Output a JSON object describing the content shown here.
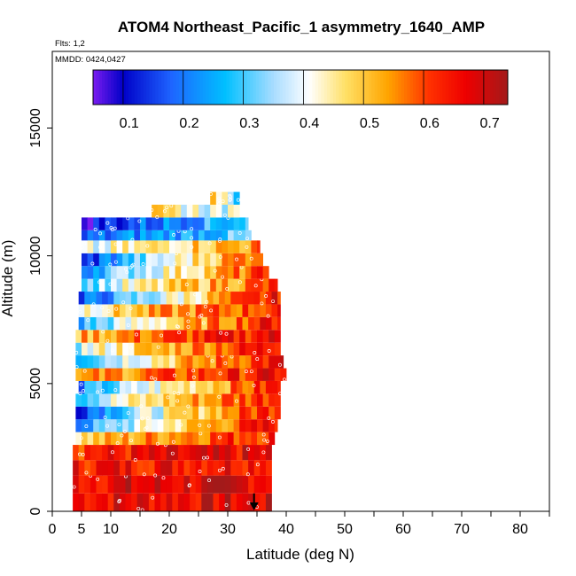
{
  "chart_data": {
    "type": "heatmap",
    "title": "ATOM4 Northeast_Pacific_1 asymmetry_1640_AMP",
    "flights_label": "Flts: 1,2",
    "dates_label": "MMDD: 0424,0427",
    "xlabel": "Latitude (deg N)",
    "ylabel": "Altitude (m)",
    "xlim": [
      0,
      85
    ],
    "ylim": [
      0,
      18000
    ],
    "x_ticks": [
      0,
      5,
      10,
      20,
      30,
      40,
      50,
      60,
      70,
      80
    ],
    "x_minor_ticks": [
      15,
      25,
      35,
      45,
      55,
      65,
      75,
      85
    ],
    "y_ticks": [
      0,
      5000,
      10000,
      15000
    ],
    "colorbar": {
      "min": 0.04,
      "max": 0.73,
      "ticks": [
        0.1,
        0.2,
        0.3,
        0.4,
        0.5,
        0.6,
        0.7
      ],
      "stops": [
        {
          "v": 0.04,
          "c": "#7a1cf0"
        },
        {
          "v": 0.09,
          "c": "#0000c8"
        },
        {
          "v": 0.17,
          "c": "#1e64ff"
        },
        {
          "v": 0.26,
          "c": "#00c0ff"
        },
        {
          "v": 0.34,
          "c": "#a8dcff"
        },
        {
          "v": 0.4,
          "c": "#ffffff"
        },
        {
          "v": 0.46,
          "c": "#ffe066"
        },
        {
          "v": 0.53,
          "c": "#ffa500"
        },
        {
          "v": 0.6,
          "c": "#ff3000"
        },
        {
          "v": 0.66,
          "c": "#ee0000"
        },
        {
          "v": 0.73,
          "c": "#a31a1a"
        }
      ]
    },
    "rows": [
      {
        "alt_min": 0,
        "alt_max": 700,
        "lat_min": 3.5,
        "lat_max": 37.5,
        "v0": 0.66,
        "v1": 0.67
      },
      {
        "alt_min": 700,
        "alt_max": 1400,
        "lat_min": 3.5,
        "lat_max": 37.5,
        "v0": 0.66,
        "v1": 0.68
      },
      {
        "alt_min": 1400,
        "alt_max": 2000,
        "lat_min": 3.5,
        "lat_max": 37.5,
        "v0": 0.64,
        "v1": 0.66
      },
      {
        "alt_min": 2000,
        "alt_max": 2600,
        "lat_min": 3.5,
        "lat_max": 37.5,
        "v0": 0.62,
        "v1": 0.66
      },
      {
        "alt_min": 2600,
        "alt_max": 3100,
        "lat_min": 4,
        "lat_max": 38,
        "v0": 0.46,
        "v1": 0.64
      },
      {
        "alt_min": 3100,
        "alt_max": 3600,
        "lat_min": 4,
        "lat_max": 38.5,
        "v0": 0.2,
        "v1": 0.66
      },
      {
        "alt_min": 3600,
        "alt_max": 4100,
        "lat_min": 4,
        "lat_max": 39,
        "v0": 0.15,
        "v1": 0.66
      },
      {
        "alt_min": 4100,
        "alt_max": 4600,
        "lat_min": 4,
        "lat_max": 39,
        "v0": 0.3,
        "v1": 0.65
      },
      {
        "alt_min": 4600,
        "alt_max": 5100,
        "lat_min": 4.5,
        "lat_max": 39,
        "v0": 0.2,
        "v1": 0.64
      },
      {
        "alt_min": 5100,
        "alt_max": 5600,
        "lat_min": 4,
        "lat_max": 40,
        "v0": 0.5,
        "v1": 0.65
      },
      {
        "alt_min": 5600,
        "alt_max": 6100,
        "lat_min": 4,
        "lat_max": 39.5,
        "v0": 0.28,
        "v1": 0.66
      },
      {
        "alt_min": 6100,
        "alt_max": 6600,
        "lat_min": 4,
        "lat_max": 39,
        "v0": 0.36,
        "v1": 0.66
      },
      {
        "alt_min": 6600,
        "alt_max": 7100,
        "lat_min": 4,
        "lat_max": 39,
        "v0": 0.5,
        "v1": 0.66
      },
      {
        "alt_min": 7100,
        "alt_max": 7600,
        "lat_min": 4.5,
        "lat_max": 39,
        "v0": 0.25,
        "v1": 0.66
      },
      {
        "alt_min": 7600,
        "alt_max": 8100,
        "lat_min": 4.5,
        "lat_max": 39,
        "v0": 0.42,
        "v1": 0.62
      },
      {
        "alt_min": 8100,
        "alt_max": 8600,
        "lat_min": 4.5,
        "lat_max": 39,
        "v0": 0.12,
        "v1": 0.65
      },
      {
        "alt_min": 8600,
        "alt_max": 9100,
        "lat_min": 5,
        "lat_max": 38.5,
        "v0": 0.3,
        "v1": 0.6
      },
      {
        "alt_min": 9100,
        "alt_max": 9600,
        "lat_min": 5,
        "lat_max": 37,
        "v0": 0.22,
        "v1": 0.6
      },
      {
        "alt_min": 9600,
        "alt_max": 10100,
        "lat_min": 5,
        "lat_max": 36,
        "v0": 0.1,
        "v1": 0.62
      },
      {
        "alt_min": 10100,
        "alt_max": 10600,
        "lat_min": 5,
        "lat_max": 35.5,
        "v0": 0.35,
        "v1": 0.55
      },
      {
        "alt_min": 10600,
        "alt_max": 11000,
        "lat_min": 5,
        "lat_max": 34,
        "v0": 0.15,
        "v1": 0.3
      },
      {
        "alt_min": 11000,
        "alt_max": 11500,
        "lat_min": 5,
        "lat_max": 33.5,
        "v0": 0.08,
        "v1": 0.3
      },
      {
        "alt_min": 11500,
        "alt_max": 12000,
        "lat_min": 17,
        "lat_max": 32,
        "v0": 0.45,
        "v1": 0.36
      },
      {
        "alt_min": 12000,
        "alt_max": 12500,
        "lat_min": 27,
        "lat_max": 32,
        "v0": 0.55,
        "v1": 0.2
      }
    ],
    "marker": {
      "lat": 34.5,
      "alt": 700
    }
  }
}
